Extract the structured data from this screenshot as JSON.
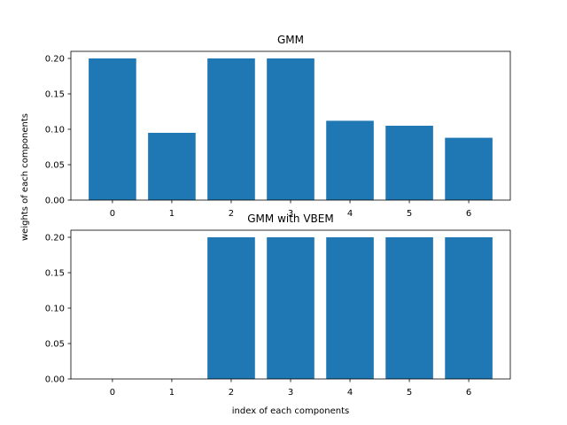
{
  "chart_data": [
    {
      "type": "bar",
      "title": "GMM",
      "xlabel": "",
      "ylabel": "weights of each components",
      "categories": [
        "0",
        "1",
        "2",
        "3",
        "4",
        "5",
        "6"
      ],
      "values": [
        0.2,
        0.095,
        0.2,
        0.2,
        0.112,
        0.105,
        0.088
      ],
      "ylim": [
        0,
        0.21
      ],
      "yticks": [
        "0.00",
        "0.05",
        "0.10",
        "0.15",
        "0.20"
      ],
      "bar_color": "#1f77b4",
      "grid": false
    },
    {
      "type": "bar",
      "title": "GMM with VBEM",
      "xlabel": "index of each components",
      "ylabel": "",
      "categories": [
        "0",
        "1",
        "2",
        "3",
        "4",
        "5",
        "6"
      ],
      "values": [
        0,
        0,
        0.2,
        0.2,
        0.2,
        0.2,
        0.2
      ],
      "ylim": [
        0,
        0.21
      ],
      "yticks": [
        "0.00",
        "0.05",
        "0.10",
        "0.15",
        "0.20"
      ],
      "bar_color": "#1f77b4",
      "grid": false
    }
  ]
}
